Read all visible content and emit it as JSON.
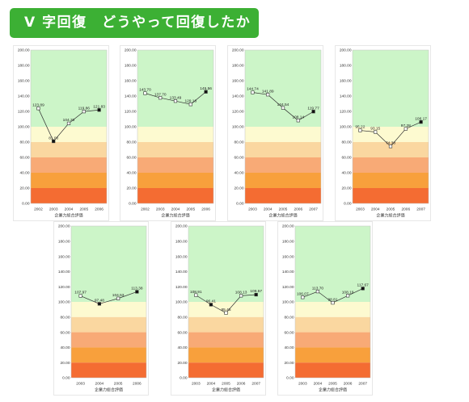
{
  "banner": {
    "title": "V 字回復　どうやって回復したか",
    "background": "#3cb034",
    "text_color": "#ffffff"
  },
  "chart_style": {
    "bands": [
      {
        "from": 100,
        "to": 200,
        "color": "#ccf5c8"
      },
      {
        "from": 80,
        "to": 100,
        "color": "#fdfad0"
      },
      {
        "from": 60,
        "to": 80,
        "color": "#fad7a0"
      },
      {
        "from": 40,
        "to": 60,
        "color": "#f8aa76"
      },
      {
        "from": 20,
        "to": 40,
        "color": "#f8a03c"
      },
      {
        "from": 0,
        "to": 20,
        "color": "#f46c32"
      }
    ],
    "line_color": "#333333",
    "marker_filled": "#111111",
    "marker_open": "#ffffff"
  },
  "chart_data": [
    {
      "type": "line",
      "categories": [
        "2002",
        "2003",
        "2004",
        "2005",
        "2006"
      ],
      "values": [
        123.89,
        81.0,
        104.33,
        119.86,
        121.83
      ],
      "markers": [
        "open",
        "filled",
        "open",
        "open",
        "filled"
      ],
      "xlabel": "企業力総合評価",
      "ylim": [
        0,
        200
      ],
      "yticks": [
        0,
        20,
        40,
        60,
        80,
        100,
        120,
        140,
        160,
        180,
        200
      ],
      "grid": false
    },
    {
      "type": "line",
      "categories": [
        "2002",
        "2003",
        "2004",
        "2005",
        "2006"
      ],
      "values": [
        143.7,
        137.7,
        133.49,
        129.18,
        145.56
      ],
      "markers": [
        "open",
        "open",
        "open",
        "open",
        "filled"
      ],
      "xlabel": "企業力総合評価",
      "ylim": [
        0,
        200
      ],
      "yticks": [
        0,
        20,
        40,
        60,
        80,
        100,
        120,
        140,
        160,
        180,
        200
      ],
      "grid": false
    },
    {
      "type": "line",
      "categories": [
        "2003",
        "2004",
        "2005",
        "2006",
        "2007"
      ],
      "values": [
        144.74,
        141.89,
        124.54,
        108.14,
        119.77
      ],
      "markers": [
        "open",
        "open",
        "open",
        "open",
        "filled"
      ],
      "xlabel": "企業力総合評価",
      "ylim": [
        0,
        200
      ],
      "yticks": [
        0,
        20,
        40,
        60,
        80,
        100,
        120,
        140,
        160,
        180,
        200
      ],
      "grid": false
    },
    {
      "type": "line",
      "categories": [
        "2003",
        "2004",
        "2005",
        "2006",
        "2007"
      ],
      "values": [
        95.22,
        93.15,
        74.38,
        97.28,
        106.17
      ],
      "markers": [
        "open",
        "open",
        "open",
        "open",
        "filled"
      ],
      "xlabel": "企業力総合評価",
      "ylim": [
        0,
        200
      ],
      "yticks": [
        0,
        20,
        40,
        60,
        80,
        100,
        120,
        140,
        160,
        180,
        200
      ],
      "grid": false
    },
    {
      "type": "line",
      "categories": [
        "2003",
        "2004",
        "2005",
        "2006"
      ],
      "values": [
        107.97,
        97.48,
        104.53,
        113.38
      ],
      "markers": [
        "open",
        "filled",
        "open",
        "filled"
      ],
      "xlabel": "企業力総合評価",
      "ylim": [
        0,
        200
      ],
      "yticks": [
        0,
        20,
        40,
        60,
        80,
        100,
        120,
        140,
        160,
        180,
        200
      ],
      "grid": false
    },
    {
      "type": "line",
      "categories": [
        "2003",
        "2004",
        "2005",
        "2006",
        "2007"
      ],
      "values": [
        108.91,
        96.41,
        85.45,
        108.13,
        109.57
      ],
      "markers": [
        "open",
        "filled",
        "open",
        "open",
        "filled"
      ],
      "xlabel": "企業力総合評価",
      "ylim": [
        0,
        200
      ],
      "yticks": [
        0,
        20,
        40,
        60,
        80,
        100,
        120,
        140,
        160,
        180,
        200
      ],
      "grid": false
    },
    {
      "type": "line",
      "categories": [
        "2003",
        "2004",
        "2005",
        "2006",
        "2007"
      ],
      "values": [
        106.07,
        113.7,
        98.81,
        108.19,
        117.67
      ],
      "markers": [
        "open",
        "open",
        "open",
        "open",
        "filled"
      ],
      "xlabel": "企業力総合評価",
      "ylim": [
        0,
        200
      ],
      "yticks": [
        0,
        20,
        40,
        60,
        80,
        100,
        120,
        140,
        160,
        180,
        200
      ],
      "grid": false
    }
  ]
}
